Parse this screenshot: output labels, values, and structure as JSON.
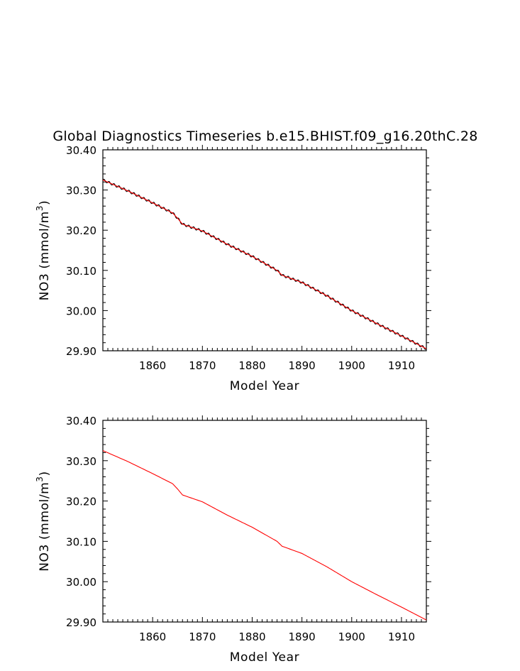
{
  "title": "Global Diagnostics Timeseries b.e15.BHIST.f09_g16.20thC.28",
  "chart_data": [
    {
      "type": "line",
      "panel": "top",
      "title": "Global Diagnostics Timeseries b.e15.BHIST.f09_g16.20thC.28",
      "xlabel": "Model Year",
      "ylabel": "NO3 (mmol/m³)",
      "ylabel_base": "NO3 (mmol/m",
      "ylabel_sup": "3",
      "ylabel_close": ")",
      "xlim": [
        1850,
        1915
      ],
      "ylim": [
        29.9,
        30.4
      ],
      "xticks": [
        "1860",
        "1870",
        "1880",
        "1890",
        "1900",
        "1910"
      ],
      "yticks": [
        "29.90",
        "30.00",
        "30.10",
        "30.20",
        "30.30",
        "30.40"
      ],
      "series": [
        {
          "style": "monthly",
          "color": "#000000",
          "seasonal_amplitude": 0.003,
          "x": [
            1850,
            1855,
            1860,
            1864,
            1865,
            1866,
            1870,
            1875,
            1880,
            1885,
            1886,
            1890,
            1895,
            1900,
            1905,
            1910,
            1915
          ],
          "y": [
            30.325,
            30.298,
            30.268,
            30.243,
            30.23,
            30.215,
            30.198,
            30.165,
            30.135,
            30.1,
            30.088,
            30.07,
            30.037,
            30.0,
            29.968,
            29.937,
            29.905
          ]
        },
        {
          "style": "annual",
          "color": "#ff0000",
          "x": [
            1850,
            1855,
            1860,
            1864,
            1865,
            1866,
            1870,
            1875,
            1880,
            1885,
            1886,
            1890,
            1895,
            1900,
            1905,
            1910,
            1915
          ],
          "y": [
            30.325,
            30.298,
            30.268,
            30.243,
            30.23,
            30.215,
            30.198,
            30.165,
            30.135,
            30.1,
            30.088,
            30.07,
            30.037,
            30.0,
            29.968,
            29.937,
            29.905
          ]
        }
      ]
    },
    {
      "type": "line",
      "panel": "bottom",
      "title": "",
      "xlabel": "Model Year",
      "ylabel": "NO3 (mmol/m³)",
      "ylabel_base": "NO3 (mmol/m",
      "ylabel_sup": "3",
      "ylabel_close": ")",
      "xlim": [
        1850,
        1915
      ],
      "ylim": [
        29.9,
        30.4
      ],
      "xticks": [
        "1860",
        "1870",
        "1880",
        "1890",
        "1900",
        "1910"
      ],
      "yticks": [
        "29.90",
        "30.00",
        "30.10",
        "30.20",
        "30.30",
        "30.40"
      ],
      "series": [
        {
          "style": "annual",
          "color": "#ff0000",
          "x": [
            1850,
            1855,
            1860,
            1864,
            1865,
            1866,
            1870,
            1875,
            1880,
            1885,
            1886,
            1890,
            1895,
            1900,
            1905,
            1910,
            1915
          ],
          "y": [
            30.325,
            30.298,
            30.268,
            30.243,
            30.23,
            30.215,
            30.198,
            30.165,
            30.135,
            30.1,
            30.088,
            30.07,
            30.037,
            30.0,
            29.968,
            29.937,
            29.905
          ]
        }
      ]
    }
  ]
}
